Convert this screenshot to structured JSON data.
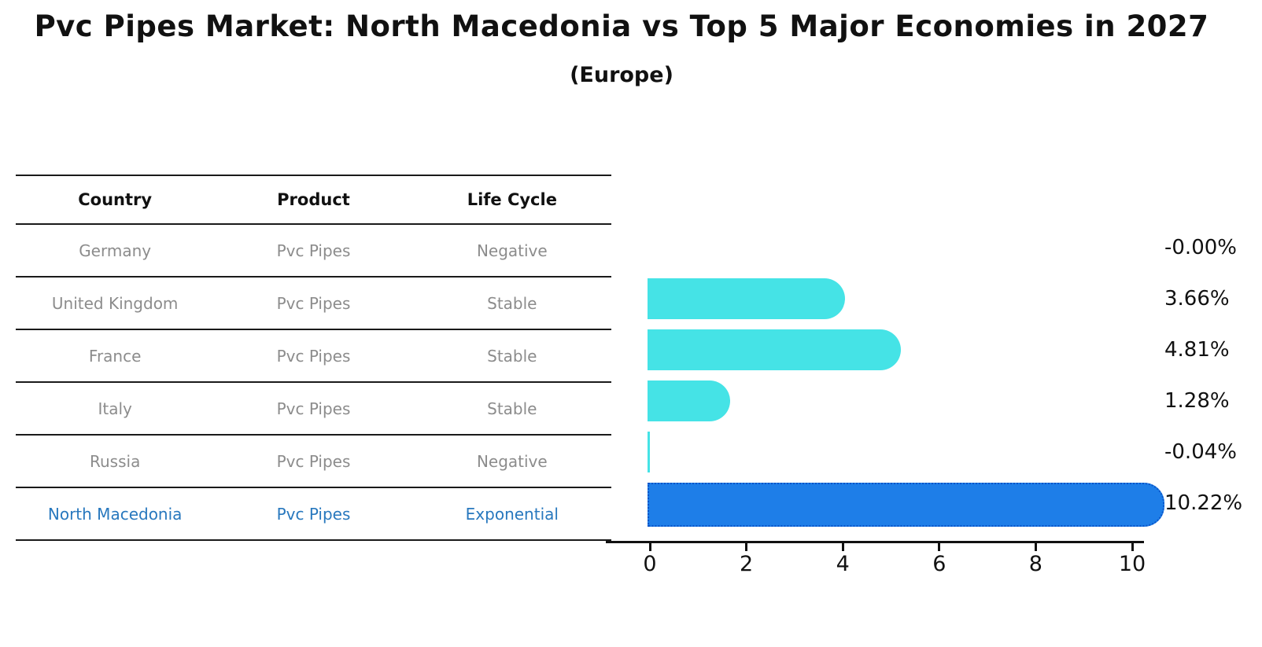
{
  "header": {
    "title": "Pvc Pipes Market: North Macedonia vs Top 5 Major Economies in 2027",
    "subtitle": "(Europe)"
  },
  "table": {
    "columns": [
      "Country",
      "Product",
      "Life Cycle"
    ],
    "rows": [
      {
        "country": "Germany",
        "product": "Pvc Pipes",
        "life_cycle": "Negative",
        "highlight": false
      },
      {
        "country": "United Kingdom",
        "product": "Pvc Pipes",
        "life_cycle": "Stable",
        "highlight": false
      },
      {
        "country": "France",
        "product": "Pvc Pipes",
        "life_cycle": "Stable",
        "highlight": false
      },
      {
        "country": "Italy",
        "product": "Pvc Pipes",
        "life_cycle": "Stable",
        "highlight": false
      },
      {
        "country": "Russia",
        "product": "Pvc Pipes",
        "life_cycle": "Negative",
        "highlight": false
      },
      {
        "country": "North Macedonia",
        "product": "Pvc Pipes",
        "life_cycle": "Exponential",
        "highlight": true
      }
    ]
  },
  "chart_data": {
    "type": "bar",
    "orientation": "horizontal",
    "title": "Pvc Pipes Market: North Macedonia vs Top 5 Major Economies in 2027",
    "subtitle": "(Europe)",
    "categories": [
      "Germany",
      "United Kingdom",
      "France",
      "Italy",
      "Russia",
      "North Macedonia"
    ],
    "values": [
      -0.0,
      3.66,
      4.81,
      1.28,
      -0.04,
      10.22
    ],
    "value_labels": [
      "-0.00%",
      "3.66%",
      "4.81%",
      "1.28%",
      "-0.04%",
      "10.22%"
    ],
    "highlight_index": 5,
    "xlabel": "",
    "ylabel": "",
    "x_ticks": [
      0,
      2,
      4,
      6,
      8,
      10
    ],
    "xlim": [
      -0.9,
      10.3
    ],
    "grid": false,
    "legend": null,
    "colors": {
      "bar_default": "#45e3e6",
      "bar_highlight": "#1e7ee8",
      "bar_highlight_border": "#0a54c8",
      "row_text": "#8c8c8c",
      "highlight_text": "#2878be",
      "axis": "#111111"
    }
  }
}
